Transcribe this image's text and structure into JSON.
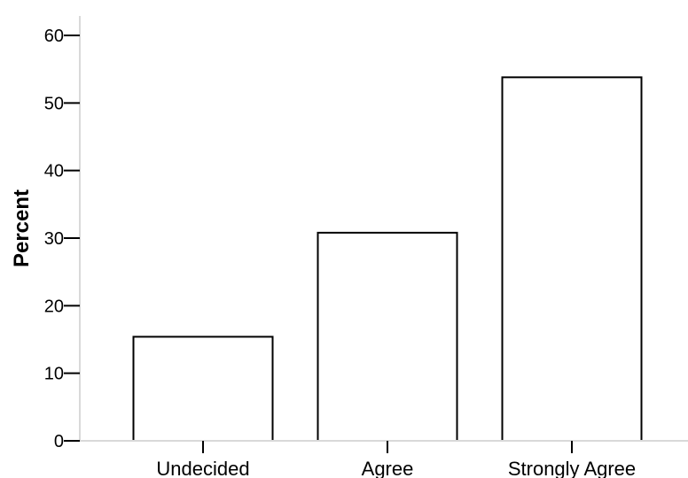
{
  "chart_data": {
    "type": "bar",
    "title": "",
    "xlabel": "",
    "ylabel": "Percent",
    "categories": [
      "Undecided",
      "Agree",
      "Strongly Agree"
    ],
    "values": [
      15.4,
      30.8,
      53.8
    ],
    "ylim": [
      0,
      60
    ],
    "yticks": [
      0,
      10,
      20,
      30,
      40,
      50,
      60
    ],
    "ytick_labels": [
      "0",
      "10",
      "20",
      "30",
      "40",
      "50",
      "60"
    ],
    "grid": false,
    "legend": "none",
    "colors": {
      "bar_fill": "#ffffff",
      "bar_stroke": "#000000",
      "axis": "#000000",
      "baseline": "#d9d9d9"
    }
  }
}
